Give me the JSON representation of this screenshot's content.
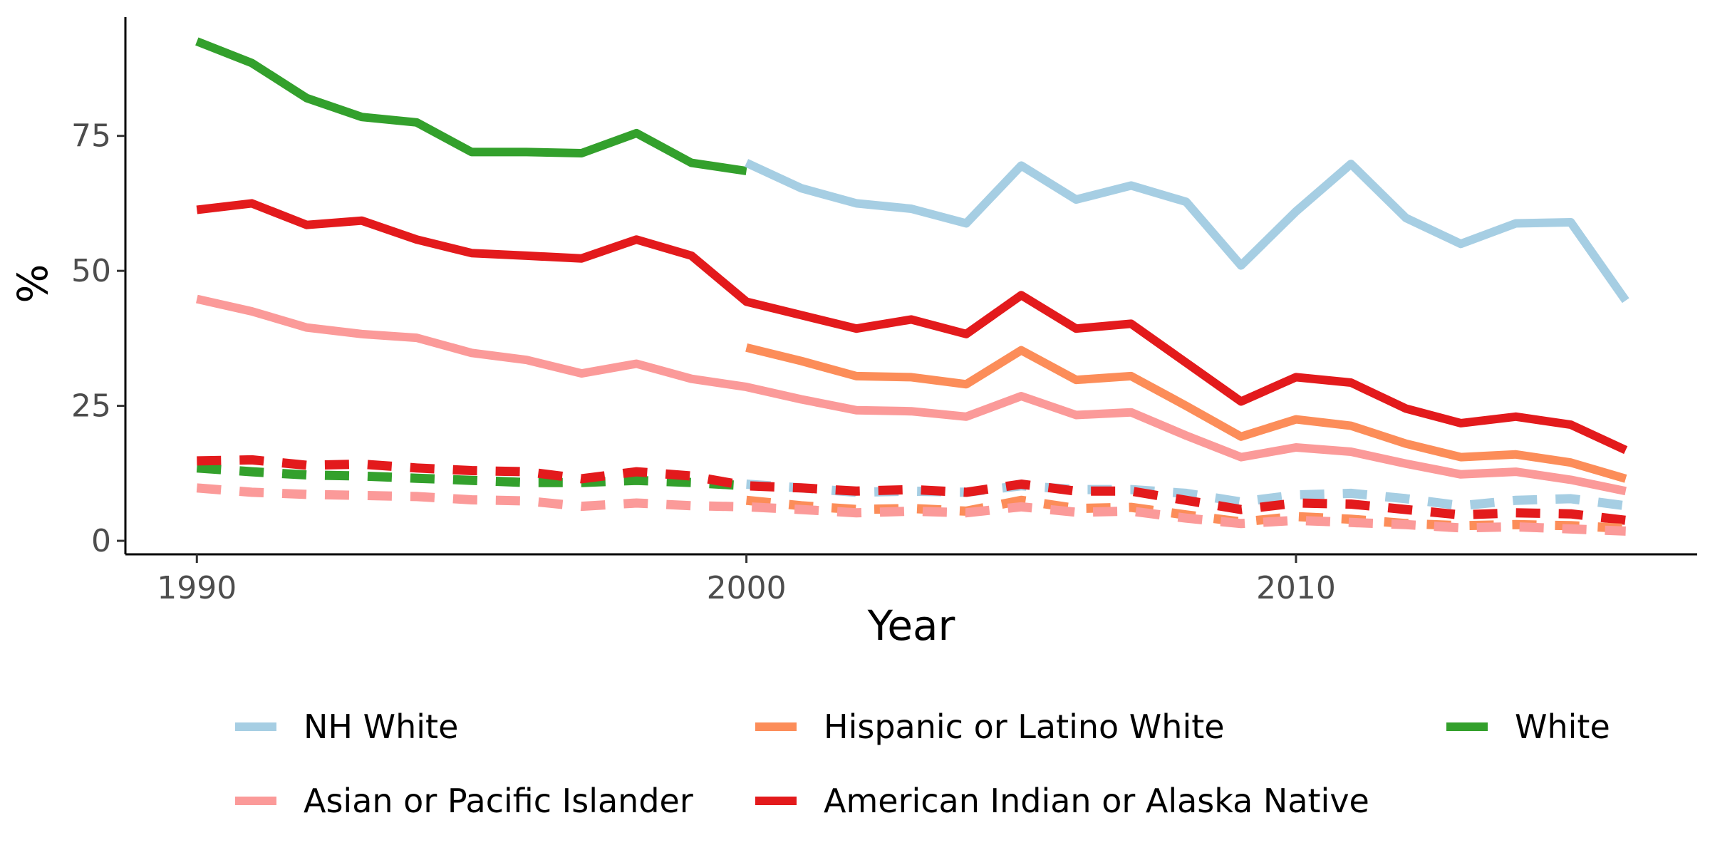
{
  "chart_data": {
    "type": "line",
    "title": "",
    "xlabel": "Year",
    "ylabel": "%",
    "xlim": [
      1988.7,
      2017.3
    ],
    "ylim": [
      -2.5,
      97
    ],
    "xticks": [
      1990,
      2000,
      2010
    ],
    "yticks": [
      0,
      25,
      50,
      75
    ],
    "grid": false,
    "legend_position": "bottom",
    "legend": [
      {
        "label": "NH White",
        "color": "#a6cee3"
      },
      {
        "label": "Hispanic or Latino White",
        "color": "#fc8d59"
      },
      {
        "label": "White",
        "color": "#33a02c"
      },
      {
        "label": "Asian or Pacific Islander",
        "color": "#fb9a99"
      },
      {
        "label": "American Indian or Alaska Native",
        "color": "#e31a1c"
      }
    ],
    "series": [
      {
        "name": "White",
        "style": "solid",
        "color": "#33a02c",
        "x": [
          1990,
          1991,
          1992,
          1993,
          1994,
          1995,
          1996,
          1997,
          1998,
          1999,
          2000
        ],
        "y": [
          92.5,
          88.5,
          82,
          78.5,
          77.5,
          72,
          72,
          71.8,
          75.5,
          70,
          68.5
        ]
      },
      {
        "name": "White",
        "style": "dashed",
        "color": "#33a02c",
        "x": [
          1990,
          1991,
          1992,
          1993,
          1994,
          1995,
          1996,
          1997,
          1998,
          1999,
          2000
        ],
        "y": [
          13.5,
          12.8,
          12.2,
          12,
          11.6,
          11.2,
          10.8,
          10.8,
          11.2,
          10.8,
          10.2
        ]
      },
      {
        "name": "NH White",
        "style": "solid",
        "color": "#a6cee3",
        "x": [
          2000,
          2001,
          2002,
          2003,
          2004,
          2005,
          2006,
          2007,
          2008,
          2009,
          2010,
          2011,
          2012,
          2013,
          2014,
          2015,
          2016
        ],
        "y": [
          70,
          65.3,
          62.5,
          61.5,
          58.8,
          69.5,
          63.2,
          65.8,
          62.8,
          51,
          61,
          69.8,
          59.8,
          55,
          58.8,
          59,
          44.5
        ]
      },
      {
        "name": "NH White",
        "style": "dashed",
        "color": "#a6cee3",
        "x": [
          2000,
          2001,
          2002,
          2003,
          2004,
          2005,
          2006,
          2007,
          2008,
          2009,
          2010,
          2011,
          2012,
          2013,
          2014,
          2015,
          2016
        ],
        "y": [
          10.5,
          9.8,
          9,
          9.2,
          9,
          10.2,
          9.5,
          9.5,
          8.8,
          7.2,
          8.5,
          8.8,
          7.8,
          6.5,
          7.5,
          7.8,
          6.5
        ]
      },
      {
        "name": "American Indian or Alaska Native",
        "style": "solid",
        "color": "#e31a1c",
        "x": [
          1990,
          1991,
          1992,
          1993,
          1994,
          1995,
          1996,
          1997,
          1998,
          1999,
          2000,
          2001,
          2002,
          2003,
          2004,
          2005,
          2006,
          2007,
          2008,
          2009,
          2010,
          2011,
          2012,
          2013,
          2014,
          2015,
          2016
        ],
        "y": [
          61.3,
          62.5,
          58.5,
          59.3,
          55.8,
          53.3,
          52.8,
          52.3,
          55.8,
          52.8,
          44.3,
          41.8,
          39.3,
          41,
          38.3,
          45.5,
          39.3,
          40.2,
          33,
          25.8,
          30.3,
          29.3,
          24.5,
          21.8,
          23,
          21.5,
          16.8
        ]
      },
      {
        "name": "American Indian or Alaska Native",
        "style": "dashed",
        "color": "#e31a1c",
        "x": [
          1990,
          1991,
          1992,
          1993,
          1994,
          1995,
          1996,
          1997,
          1998,
          1999,
          2000,
          2001,
          2002,
          2003,
          2004,
          2005,
          2006,
          2007,
          2008,
          2009,
          2010,
          2011,
          2012,
          2013,
          2014,
          2015,
          2016
        ],
        "y": [
          14.8,
          15,
          14,
          14.2,
          13.5,
          13,
          12.8,
          11.5,
          12.8,
          12,
          10.2,
          9.8,
          9.2,
          9.5,
          9,
          10.5,
          9.2,
          9.2,
          7.5,
          5.8,
          7,
          6.8,
          5.8,
          4.8,
          5.2,
          5,
          3.8
        ]
      },
      {
        "name": "Hispanic or Latino White",
        "style": "solid",
        "color": "#fc8d59",
        "x": [
          2000,
          2001,
          2002,
          2003,
          2004,
          2005,
          2006,
          2007,
          2008,
          2009,
          2010,
          2011,
          2012,
          2013,
          2014,
          2015,
          2016
        ],
        "y": [
          35.8,
          33.3,
          30.5,
          30.3,
          29,
          35.3,
          29.8,
          30.5,
          25,
          19.3,
          22.5,
          21.3,
          18,
          15.5,
          16,
          14.5,
          11.5
        ]
      },
      {
        "name": "Hispanic or Latino White",
        "style": "dashed",
        "color": "#fc8d59",
        "x": [
          2000,
          2001,
          2002,
          2003,
          2004,
          2005,
          2006,
          2007,
          2008,
          2009,
          2010,
          2011,
          2012,
          2013,
          2014,
          2015,
          2016
        ],
        "y": [
          7.5,
          6.5,
          5.8,
          6,
          5.5,
          7.5,
          6,
          6.2,
          4.8,
          3.5,
          4.5,
          4,
          3.2,
          2.8,
          3,
          2.8,
          2.3
        ]
      },
      {
        "name": "Asian or Pacific Islander",
        "style": "solid",
        "color": "#fb9a99",
        "x": [
          1990,
          1991,
          1992,
          1993,
          1994,
          1995,
          1996,
          1997,
          1998,
          1999,
          2000,
          2001,
          2002,
          2003,
          2004,
          2005,
          2006,
          2007,
          2008,
          2009,
          2010,
          2011,
          2012,
          2013,
          2014,
          2015,
          2016
        ],
        "y": [
          44.8,
          42.5,
          39.5,
          38.3,
          37.6,
          34.8,
          33.5,
          31,
          32.8,
          30,
          28.5,
          26.2,
          24.2,
          24,
          23,
          26.8,
          23.3,
          23.8,
          19.5,
          15.5,
          17.3,
          16.5,
          14.3,
          12.3,
          12.8,
          11.3,
          9.2
        ]
      },
      {
        "name": "Asian or Pacific Islander",
        "style": "dashed",
        "color": "#fb9a99",
        "x": [
          1990,
          1991,
          1992,
          1993,
          1994,
          1995,
          1996,
          1997,
          1998,
          1999,
          2000,
          2001,
          2002,
          2003,
          2004,
          2005,
          2006,
          2007,
          2008,
          2009,
          2010,
          2011,
          2012,
          2013,
          2014,
          2015,
          2016
        ],
        "y": [
          9.8,
          9,
          8.6,
          8.4,
          8.2,
          7.6,
          7.4,
          6.4,
          7,
          6.5,
          6.3,
          5.8,
          5.2,
          5.5,
          5.2,
          6.3,
          5.3,
          5.5,
          4.2,
          3.2,
          3.8,
          3.4,
          3,
          2.4,
          2.6,
          2.2,
          1.8
        ]
      }
    ]
  }
}
